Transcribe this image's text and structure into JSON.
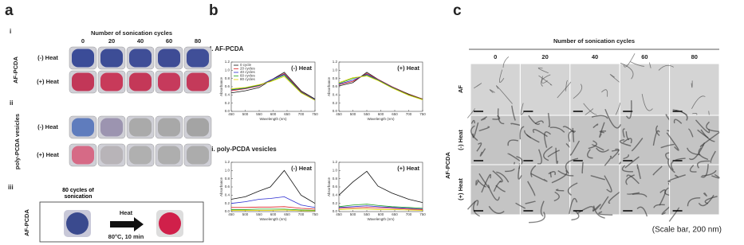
{
  "panel_a": {
    "letter": "a",
    "sub_i": "i",
    "header": "Number of sonication cycles",
    "columns": [
      "0",
      "20",
      "40",
      "60",
      "80"
    ],
    "i_side": "AF-PCDA",
    "i_rows": [
      "(-) Heat",
      "(+) Heat"
    ],
    "sub_ii": "ii",
    "ii_side": "poly-PCDA vesicles",
    "ii_rows": [
      "(-) Heat",
      "(+) Heat"
    ],
    "sub_iii": "iii",
    "iii_side": "AF-PCDA",
    "iii_caption": "80 cycles of sonication",
    "arrow_label": "Heat",
    "arrow_condition": "80°C, 10 min"
  },
  "panel_b": {
    "letter": "b",
    "section_i": "I. AF-PCDA",
    "section_ii": "ii. poly-PCDA vesicles"
  },
  "panel_c": {
    "letter": "c",
    "header": "Number of sonication cycles",
    "columns": [
      "0",
      "20",
      "40",
      "60",
      "80"
    ],
    "row_af": "AF",
    "group": "AF-PCDA",
    "rows": [
      "(-) Heat",
      "(+) Heat"
    ],
    "note": "(Scale bar, 200 nm)"
  },
  "chart_data": [
    {
      "type": "line",
      "title": "(-) Heat",
      "x_label": "Wavelength (nm)",
      "y_label": "Absorbance",
      "x": [
        450,
        500,
        550,
        590,
        640,
        700,
        750
      ],
      "xlim": [
        450,
        750
      ],
      "xticks": [
        450,
        500,
        550,
        600,
        650,
        700,
        750
      ],
      "ylim": [
        0,
        1.2
      ],
      "yticks": [
        {
          "value": 0,
          "label": "0.0"
        },
        0.2,
        0.4,
        0.6,
        0.8,
        {
          "value": 1,
          "label": "1.0"
        },
        1.2
      ],
      "series": [
        {
          "name": "0 cycle",
          "color": "#111111",
          "values": [
            0.45,
            0.5,
            0.58,
            0.75,
            0.95,
            0.5,
            0.3
          ]
        },
        {
          "name": "20 cycles",
          "color": "#e02020",
          "values": [
            0.5,
            0.55,
            0.62,
            0.75,
            0.92,
            0.48,
            0.28
          ]
        },
        {
          "name": "40 cycles",
          "color": "#2a2ad0",
          "values": [
            0.52,
            0.56,
            0.63,
            0.76,
            0.9,
            0.47,
            0.28
          ]
        },
        {
          "name": "60 cycles",
          "color": "#20a020",
          "values": [
            0.53,
            0.57,
            0.64,
            0.73,
            0.88,
            0.46,
            0.27
          ]
        },
        {
          "name": "80 cycles",
          "color": "#e0d000",
          "values": [
            0.55,
            0.58,
            0.65,
            0.72,
            0.85,
            0.45,
            0.27
          ]
        }
      ]
    },
    {
      "type": "line",
      "title": "(+) Heat",
      "x_label": "Wavelength (nm)",
      "y_label": "Absorbance",
      "x": [
        450,
        500,
        550,
        590,
        640,
        700,
        750
      ],
      "xlim": [
        450,
        750
      ],
      "xticks": [
        450,
        500,
        550,
        600,
        650,
        700,
        750
      ],
      "ylim": [
        0,
        1.2
      ],
      "yticks": [
        {
          "value": 0,
          "label": "0.0"
        },
        0.2,
        0.4,
        0.6,
        0.8,
        {
          "value": 1,
          "label": "1.0"
        },
        1.2
      ],
      "series": [
        {
          "color": "#111111",
          "values": [
            0.62,
            0.7,
            0.95,
            0.78,
            0.6,
            0.42,
            0.3
          ]
        },
        {
          "color": "#e02020",
          "values": [
            0.65,
            0.73,
            0.92,
            0.78,
            0.6,
            0.41,
            0.3
          ]
        },
        {
          "color": "#2a2ad0",
          "values": [
            0.66,
            0.76,
            0.9,
            0.77,
            0.59,
            0.4,
            0.29
          ]
        },
        {
          "color": "#20a020",
          "values": [
            0.68,
            0.8,
            0.88,
            0.76,
            0.58,
            0.4,
            0.29
          ]
        },
        {
          "color": "#e0d000",
          "values": [
            0.7,
            0.82,
            0.86,
            0.75,
            0.57,
            0.39,
            0.28
          ]
        }
      ]
    },
    {
      "type": "line",
      "title": "(-) Heat",
      "x_label": "Wavelength (nm)",
      "y_label": "Absorbance",
      "x": [
        450,
        500,
        550,
        590,
        640,
        700,
        750
      ],
      "xlim": [
        450,
        750
      ],
      "xticks": [
        450,
        500,
        550,
        600,
        650,
        700,
        750
      ],
      "ylim": [
        0,
        1.2
      ],
      "yticks": [
        {
          "value": 0,
          "label": "0.0"
        },
        0.2,
        0.4,
        0.6,
        0.8,
        {
          "value": 1,
          "label": "1.0"
        },
        1.2
      ],
      "series": [
        {
          "color": "#111111",
          "values": [
            0.3,
            0.36,
            0.5,
            0.6,
            1.0,
            0.4,
            0.2
          ]
        },
        {
          "color": "#2a2ad0",
          "values": [
            0.2,
            0.24,
            0.3,
            0.32,
            0.36,
            0.16,
            0.1
          ]
        },
        {
          "color": "#e02020",
          "values": [
            0.1,
            0.1,
            0.11,
            0.11,
            0.12,
            0.08,
            0.06
          ]
        },
        {
          "color": "#20a020",
          "values": [
            0.05,
            0.05,
            0.06,
            0.06,
            0.06,
            0.04,
            0.03
          ]
        },
        {
          "color": "#e0d000",
          "values": [
            0.03,
            0.03,
            0.03,
            0.03,
            0.04,
            0.02,
            0.02
          ]
        }
      ]
    },
    {
      "type": "line",
      "title": "(+) Heat",
      "x_label": "Wavelength (nm)",
      "y_label": "Absorbance",
      "x": [
        450,
        500,
        550,
        590,
        640,
        700,
        750
      ],
      "xlim": [
        450,
        750
      ],
      "xticks": [
        450,
        500,
        550,
        600,
        650,
        700,
        750
      ],
      "ylim": [
        0,
        1.2
      ],
      "yticks": [
        {
          "value": 0,
          "label": "0.0"
        },
        0.2,
        0.4,
        0.6,
        0.8,
        {
          "value": 1,
          "label": "1.0"
        },
        1.2
      ],
      "series": [
        {
          "color": "#111111",
          "values": [
            0.4,
            0.72,
            0.98,
            0.62,
            0.45,
            0.3,
            0.22
          ]
        },
        {
          "color": "#2a2ad0",
          "values": [
            0.1,
            0.12,
            0.14,
            0.12,
            0.1,
            0.08,
            0.06
          ]
        },
        {
          "color": "#e02020",
          "values": [
            0.08,
            0.09,
            0.1,
            0.09,
            0.08,
            0.06,
            0.05
          ]
        },
        {
          "color": "#20a020",
          "values": [
            0.12,
            0.16,
            0.18,
            0.15,
            0.12,
            0.1,
            0.08
          ]
        },
        {
          "color": "#e0d000",
          "values": [
            0.05,
            0.06,
            0.06,
            0.05,
            0.05,
            0.04,
            0.03
          ]
        }
      ]
    }
  ]
}
